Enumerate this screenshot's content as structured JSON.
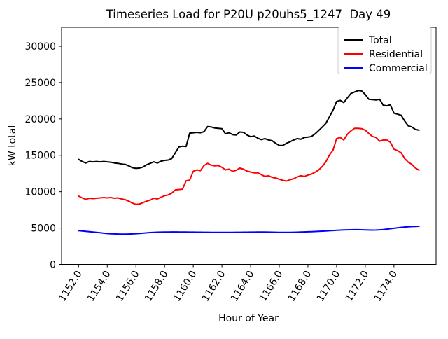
{
  "chart_data": {
    "type": "line",
    "title": "Timeseries Load for P20U p20uhs5_1247  Day 49",
    "xlabel": "Hour of Year",
    "ylabel": "kW total",
    "xlim": [
      1150.8125,
      1176.9375
    ],
    "ylim": [
      0,
      32600
    ],
    "grid": false,
    "legend_position": "upper right",
    "xticks": {
      "values": [
        1152.0,
        1154.0,
        1156.0,
        1158.0,
        1160.0,
        1162.0,
        1164.0,
        1166.0,
        1168.0,
        1170.0,
        1172.0,
        1174.0
      ],
      "labels": [
        "1152.0",
        "1154.0",
        "1156.0",
        "1158.0",
        "1160.0",
        "1162.0",
        "1164.0",
        "1166.0",
        "1168.0",
        "1170.0",
        "1172.0",
        "1174.0"
      ]
    },
    "yticks": {
      "values": [
        0,
        5000,
        10000,
        15000,
        20000,
        25000,
        30000
      ],
      "labels": [
        "0",
        "5000",
        "10000",
        "15000",
        "20000",
        "25000",
        "30000"
      ]
    },
    "x": [
      1152.0,
      1152.25,
      1152.5,
      1152.75,
      1153.0,
      1153.25,
      1153.5,
      1153.75,
      1154.0,
      1154.25,
      1154.5,
      1154.75,
      1155.0,
      1155.25,
      1155.5,
      1155.75,
      1156.0,
      1156.25,
      1156.5,
      1156.75,
      1157.0,
      1157.25,
      1157.5,
      1157.75,
      1158.0,
      1158.25,
      1158.5,
      1158.75,
      1159.0,
      1159.25,
      1159.5,
      1159.75,
      1160.0,
      1160.25,
      1160.5,
      1160.75,
      1161.0,
      1161.25,
      1161.5,
      1161.75,
      1162.0,
      1162.25,
      1162.5,
      1162.75,
      1163.0,
      1163.25,
      1163.5,
      1163.75,
      1164.0,
      1164.25,
      1164.5,
      1164.75,
      1165.0,
      1165.25,
      1165.5,
      1165.75,
      1166.0,
      1166.25,
      1166.5,
      1166.75,
      1167.0,
      1167.25,
      1167.5,
      1167.75,
      1168.0,
      1168.25,
      1168.5,
      1168.75,
      1169.0,
      1169.25,
      1169.5,
      1169.75,
      1170.0,
      1170.25,
      1170.5,
      1170.75,
      1171.0,
      1171.25,
      1171.5,
      1171.75,
      1172.0,
      1172.25,
      1172.5,
      1172.75,
      1173.0,
      1173.25,
      1173.5,
      1173.75,
      1174.0,
      1174.25,
      1174.5,
      1174.75,
      1175.0,
      1175.25,
      1175.5,
      1175.75
    ],
    "series": [
      {
        "name": "Total",
        "color": "#000000",
        "values": [
          14450,
          14150,
          13950,
          14150,
          14100,
          14150,
          14100,
          14150,
          14100,
          14050,
          13950,
          13900,
          13800,
          13750,
          13550,
          13300,
          13200,
          13250,
          13400,
          13700,
          13900,
          14100,
          13950,
          14200,
          14300,
          14350,
          14550,
          15350,
          16150,
          16250,
          16200,
          18050,
          18100,
          18150,
          18100,
          18250,
          18950,
          18900,
          18750,
          18700,
          18650,
          17950,
          18100,
          17850,
          17800,
          18200,
          18150,
          17800,
          17550,
          17650,
          17350,
          17150,
          17300,
          17100,
          17000,
          16650,
          16350,
          16350,
          16650,
          16850,
          17100,
          17300,
          17200,
          17450,
          17500,
          17600,
          17950,
          18400,
          18900,
          19400,
          20300,
          21200,
          22400,
          22550,
          22250,
          22900,
          23500,
          23700,
          23900,
          23850,
          23350,
          22700,
          22650,
          22600,
          22700,
          21900,
          21800,
          21950,
          20800,
          20650,
          20500,
          19700,
          19050,
          18900,
          18550,
          18450
        ]
      },
      {
        "name": "Residential",
        "color": "#ff0000",
        "values": [
          9400,
          9150,
          8950,
          9100,
          9050,
          9100,
          9150,
          9200,
          9150,
          9200,
          9100,
          9150,
          9000,
          8900,
          8700,
          8450,
          8250,
          8300,
          8500,
          8700,
          8850,
          9100,
          9000,
          9250,
          9450,
          9550,
          9800,
          10250,
          10300,
          10350,
          11500,
          11600,
          12800,
          13000,
          12900,
          13600,
          13900,
          13650,
          13550,
          13600,
          13350,
          13000,
          13100,
          12800,
          12950,
          13250,
          13100,
          12840,
          12700,
          12600,
          12600,
          12350,
          12100,
          12200,
          11980,
          11880,
          11720,
          11560,
          11460,
          11650,
          11790,
          12030,
          12200,
          12100,
          12290,
          12420,
          12680,
          12990,
          13470,
          14110,
          15050,
          15700,
          17300,
          17450,
          17100,
          17900,
          18350,
          18700,
          18700,
          18650,
          18450,
          18000,
          17600,
          17450,
          16950,
          17100,
          17100,
          16800,
          15850,
          15650,
          15350,
          14550,
          14050,
          13750,
          13250,
          12950
        ]
      },
      {
        "name": "Commercial",
        "color": "#0000ff",
        "values": [
          4650,
          4600,
          4550,
          4500,
          4450,
          4400,
          4350,
          4300,
          4250,
          4220,
          4200,
          4180,
          4170,
          4170,
          4180,
          4200,
          4230,
          4260,
          4300,
          4340,
          4380,
          4410,
          4430,
          4440,
          4450,
          4460,
          4470,
          4470,
          4460,
          4450,
          4450,
          4440,
          4440,
          4430,
          4430,
          4420,
          4420,
          4410,
          4410,
          4400,
          4400,
          4400,
          4410,
          4410,
          4420,
          4420,
          4430,
          4430,
          4440,
          4440,
          4450,
          4450,
          4450,
          4440,
          4430,
          4420,
          4410,
          4400,
          4400,
          4410,
          4420,
          4430,
          4450,
          4470,
          4490,
          4510,
          4530,
          4550,
          4570,
          4600,
          4630,
          4660,
          4690,
          4720,
          4740,
          4760,
          4770,
          4780,
          4780,
          4770,
          4750,
          4730,
          4720,
          4730,
          4760,
          4800,
          4850,
          4910,
          4970,
          5030,
          5090,
          5140,
          5180,
          5210,
          5230,
          5250
        ]
      }
    ],
    "colors": {
      "background": "#ffffff",
      "axis": "#000000",
      "legend_border": "#cccccc"
    }
  }
}
